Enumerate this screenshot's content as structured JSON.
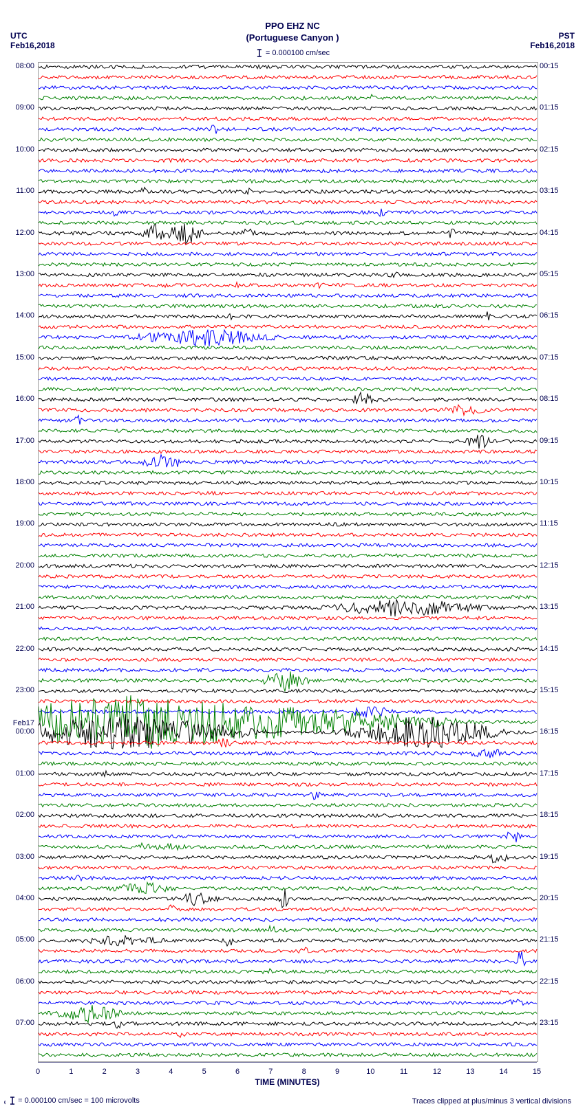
{
  "header": {
    "title": "PPO EHZ NC",
    "subtitle": "(Portuguese Canyon )",
    "scale": "= 0.000100 cm/sec",
    "tz_left": "UTC",
    "tz_right": "PST",
    "date_left": "Feb16,2018",
    "date_right": "Feb16,2018"
  },
  "footer": {
    "left": "= 0.000100 cm/sec =    100 microvolts",
    "right": "Traces clipped at plus/minus 3 vertical divisions"
  },
  "axis": {
    "x_label": "TIME (MINUTES)",
    "x_ticks": [
      0,
      1,
      2,
      3,
      4,
      5,
      6,
      7,
      8,
      9,
      10,
      11,
      12,
      13,
      14,
      15
    ],
    "minor_per_major": 4
  },
  "plot": {
    "width_units": 15,
    "trace_colors": [
      "#000000",
      "#ff0000",
      "#0000ff",
      "#008000"
    ],
    "grid_color": "#bbbbbb",
    "background": "#ffffff",
    "trace_count": 96,
    "trace_spacing": 15.1,
    "noise_amplitude": 2.5,
    "left_start_hour": 8,
    "right_start_hour": 0,
    "right_start_minute": 15,
    "day_break_label": "Feb17",
    "events": [
      {
        "row": 3,
        "x": 1.2,
        "amp": 6,
        "w": 0.2
      },
      {
        "row": 3,
        "x": 3.9,
        "amp": 5,
        "w": 0.2
      },
      {
        "row": 3,
        "x": 10.0,
        "amp": 6,
        "w": 0.2
      },
      {
        "row": 6,
        "x": 5.3,
        "amp": 8,
        "w": 0.3
      },
      {
        "row": 12,
        "x": 3.2,
        "amp": 8,
        "w": 0.3
      },
      {
        "row": 12,
        "x": 6.3,
        "amp": 6,
        "w": 0.2
      },
      {
        "row": 14,
        "x": 2.3,
        "amp": 6,
        "w": 0.2
      },
      {
        "row": 14,
        "x": 10.3,
        "amp": 8,
        "w": 0.2
      },
      {
        "row": 16,
        "x": 3.5,
        "amp": 14,
        "w": 0.6
      },
      {
        "row": 16,
        "x": 4.4,
        "amp": 18,
        "w": 0.8
      },
      {
        "row": 16,
        "x": 6.3,
        "amp": 10,
        "w": 0.3
      },
      {
        "row": 16,
        "x": 12.4,
        "amp": 8,
        "w": 0.3
      },
      {
        "row": 20,
        "x": 10.7,
        "amp": 8,
        "w": 0.3
      },
      {
        "row": 21,
        "x": 3.9,
        "amp": 7,
        "w": 0.2
      },
      {
        "row": 21,
        "x": 6.0,
        "amp": 6,
        "w": 0.2
      },
      {
        "row": 21,
        "x": 8.5,
        "amp": 7,
        "w": 0.2
      },
      {
        "row": 24,
        "x": 5.8,
        "amp": 6,
        "w": 0.2
      },
      {
        "row": 24,
        "x": 13.5,
        "amp": 8,
        "w": 0.2
      },
      {
        "row": 26,
        "x": 5.0,
        "amp": 14,
        "w": 3.0
      },
      {
        "row": 32,
        "x": 9.8,
        "amp": 16,
        "w": 0.5
      },
      {
        "row": 33,
        "x": 12.8,
        "amp": 10,
        "w": 1.0
      },
      {
        "row": 34,
        "x": 1.2,
        "amp": 8,
        "w": 0.3
      },
      {
        "row": 36,
        "x": 13.2,
        "amp": 16,
        "w": 0.5
      },
      {
        "row": 38,
        "x": 3.7,
        "amp": 18,
        "w": 0.8
      },
      {
        "row": 52,
        "x": 11.0,
        "amp": 14,
        "w": 3.5
      },
      {
        "row": 59,
        "x": 7.4,
        "amp": 16,
        "w": 1.0
      },
      {
        "row": 62,
        "x": 10.0,
        "amp": 10,
        "w": 1.0
      },
      {
        "row": 63,
        "x": 3.0,
        "amp": 40,
        "w": 11.0
      },
      {
        "row": 64,
        "x": 2.5,
        "amp": 28,
        "w": 5.0
      },
      {
        "row": 64,
        "x": 11.5,
        "amp": 28,
        "w": 3.0
      },
      {
        "row": 65,
        "x": 5.6,
        "amp": 8,
        "w": 0.5
      },
      {
        "row": 66,
        "x": 13.5,
        "amp": 8,
        "w": 1.0
      },
      {
        "row": 68,
        "x": 2.0,
        "amp": 8,
        "w": 0.3
      },
      {
        "row": 70,
        "x": 8.3,
        "amp": 8,
        "w": 0.3
      },
      {
        "row": 74,
        "x": 14.3,
        "amp": 12,
        "w": 0.4
      },
      {
        "row": 75,
        "x": 3.5,
        "amp": 8,
        "w": 1.5
      },
      {
        "row": 76,
        "x": 13.8,
        "amp": 14,
        "w": 0.4
      },
      {
        "row": 78,
        "x": 1.2,
        "amp": 6,
        "w": 0.3
      },
      {
        "row": 79,
        "x": 3.2,
        "amp": 10,
        "w": 1.5
      },
      {
        "row": 80,
        "x": 4.8,
        "amp": 12,
        "w": 1.0
      },
      {
        "row": 80,
        "x": 7.4,
        "amp": 25,
        "w": 0.2
      },
      {
        "row": 81,
        "x": 4.0,
        "amp": 7,
        "w": 0.3
      },
      {
        "row": 83,
        "x": 7.0,
        "amp": 8,
        "w": 0.3
      },
      {
        "row": 84,
        "x": 2.5,
        "amp": 8,
        "w": 2.0
      },
      {
        "row": 84,
        "x": 5.7,
        "amp": 10,
        "w": 0.4
      },
      {
        "row": 85,
        "x": 8.0,
        "amp": 8,
        "w": 0.3
      },
      {
        "row": 86,
        "x": 14.5,
        "amp": 20,
        "w": 0.2
      },
      {
        "row": 87,
        "x": 6.9,
        "amp": 6,
        "w": 0.3
      },
      {
        "row": 90,
        "x": 14.3,
        "amp": 10,
        "w": 0.4
      },
      {
        "row": 91,
        "x": 1.5,
        "amp": 14,
        "w": 1.5
      },
      {
        "row": 92,
        "x": 2.4,
        "amp": 8,
        "w": 0.3
      },
      {
        "row": 93,
        "x": 4.3,
        "amp": 6,
        "w": 0.3
      }
    ]
  }
}
